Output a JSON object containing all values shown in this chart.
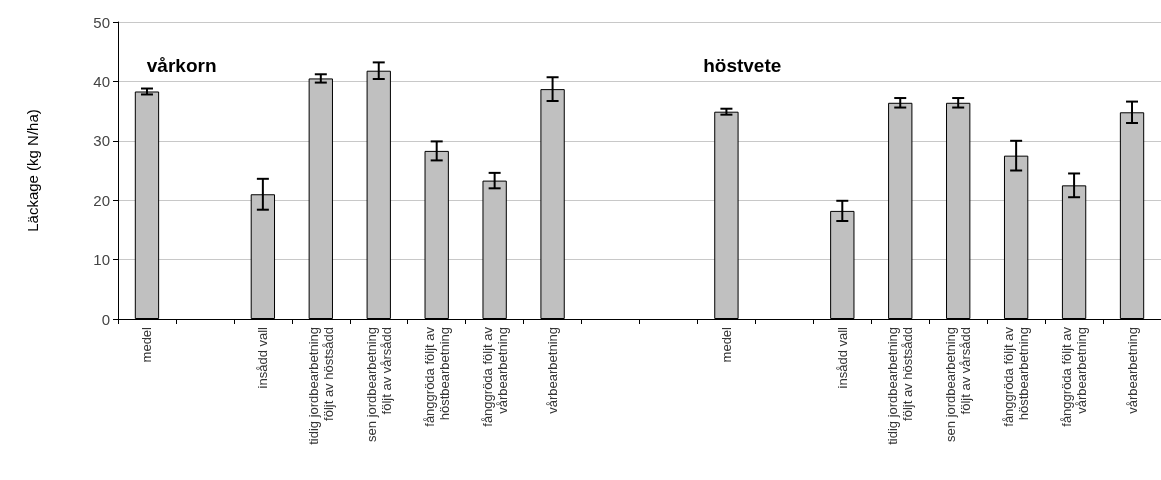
{
  "chart_data": {
    "type": "bar",
    "ylabel": "Läckage (kg N/ha)",
    "categories": [
      "medel",
      null,
      "insådd vall",
      "tidig jordbearbetning följt av höstsådd",
      "sen jordbearbetning följt av vårsådd",
      "fånggröda följt av höstbearbetning",
      "fånggröda följt av vårbearbetning",
      "vårbearbetning",
      null,
      null,
      "medel",
      null,
      "insådd vall",
      "tidig jordbearbetning följt av höstsådd",
      "sen jordbearbetning följt av vårsådd",
      "fånggröda följt av höstbearbetning",
      "fånggröda följt av vårbearbetning",
      "vårbearbetning"
    ],
    "values": [
      38.3,
      null,
      21,
      40.5,
      41.8,
      28.3,
      23.3,
      38.7,
      null,
      null,
      34.9,
      null,
      18.2,
      36.4,
      36.4,
      27.5,
      22.5,
      34.8
    ],
    "errors": [
      0.5,
      null,
      2.6,
      0.7,
      1.4,
      1.6,
      1.3,
      2.0,
      null,
      null,
      0.5,
      null,
      1.7,
      0.8,
      0.8,
      2.5,
      2.0,
      1.8
    ],
    "color": "#c0c0c0",
    "ylim": [
      0,
      50
    ],
    "yticks": [
      0,
      10,
      20,
      30,
      40,
      50
    ],
    "grid": "y",
    "annotations": [
      "vårkorn",
      "höstvete"
    ]
  }
}
